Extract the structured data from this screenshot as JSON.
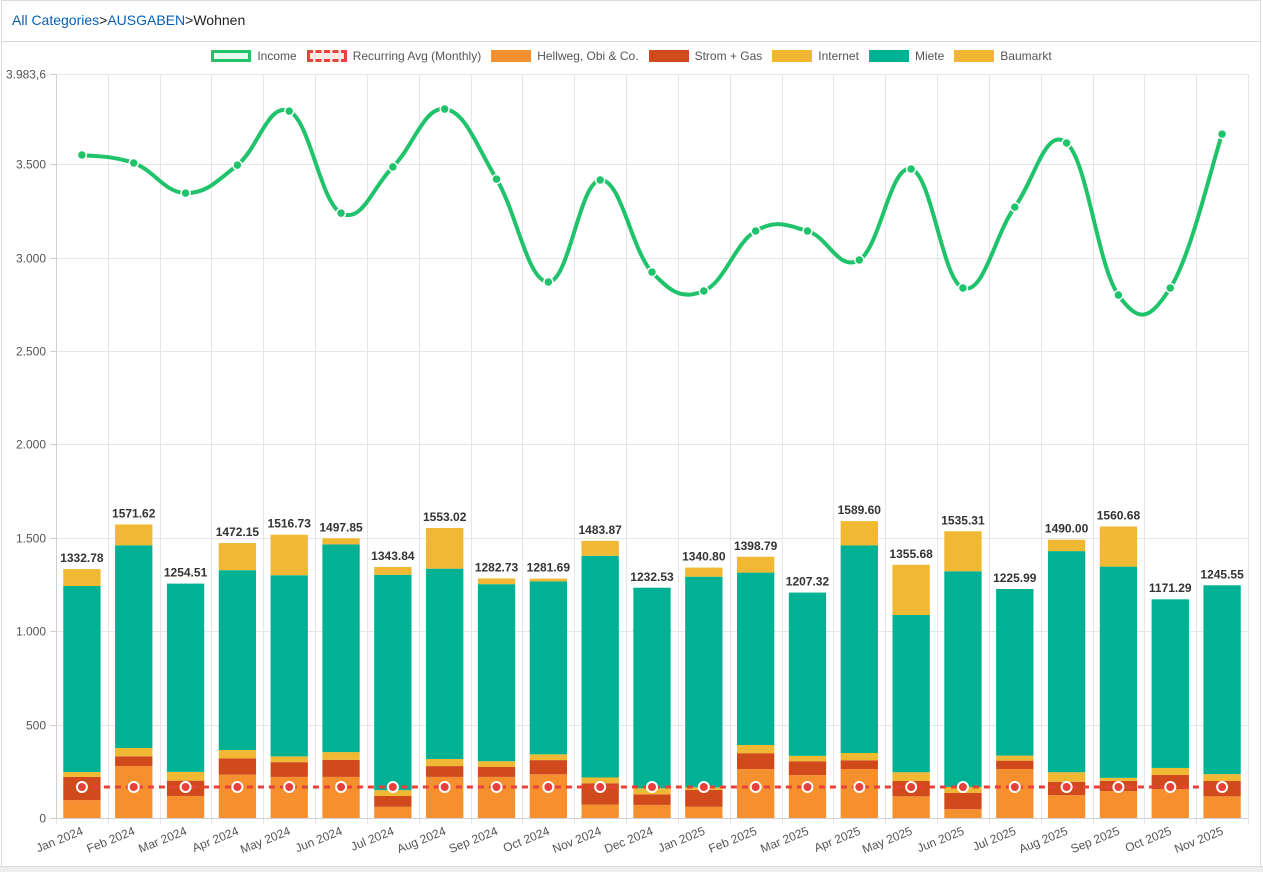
{
  "breadcrumb": {
    "items": [
      {
        "label": "All Categories",
        "link": true
      },
      {
        "label": ">",
        "link": false
      },
      {
        "label": "AUSGABEN",
        "link": true
      },
      {
        "label": ">",
        "link": false
      },
      {
        "label": "Wohnen",
        "link": false
      }
    ]
  },
  "colors": {
    "income": "#1fc36a",
    "recurring": "#e8403a",
    "hellweg": "#f6902f",
    "strom": "#d04a1c",
    "internet": "#f0b833",
    "miete": "#00b193",
    "baumarkt": "#f0b833"
  },
  "chart_data": {
    "type": "bar",
    "stacked": true,
    "title": "",
    "xlabel": "",
    "ylabel": "",
    "ylim": [
      0,
      3983.6
    ],
    "y_ticks": [
      {
        "value": 0,
        "label": "0"
      },
      {
        "value": 500,
        "label": "500"
      },
      {
        "value": 1000,
        "label": "1.000"
      },
      {
        "value": 1500,
        "label": "1.500"
      },
      {
        "value": 2000,
        "label": "2.000"
      },
      {
        "value": 2500,
        "label": "2.500"
      },
      {
        "value": 3000,
        "label": "3.000"
      },
      {
        "value": 3500,
        "label": "3.500"
      },
      {
        "value": 3983.6,
        "label": "3.983,6"
      }
    ],
    "grid": true,
    "legend_position": "top-center",
    "categories": [
      "Jan 2024",
      "Feb 2024",
      "Mar 2024",
      "Apr 2024",
      "May 2024",
      "Jun 2024",
      "Jul 2024",
      "Aug 2024",
      "Sep 2024",
      "Oct 2024",
      "Nov 2024",
      "Dec 2024",
      "Jan 2025",
      "Feb 2025",
      "Mar 2025",
      "Apr 2025",
      "May 2025",
      "Jun 2025",
      "Jul 2025",
      "Aug 2025",
      "Sep 2025",
      "Oct 2025",
      "Nov 2025"
    ],
    "totals_labels": [
      "1332.78",
      "1571.62",
      "1254.51",
      "1472.15",
      "1516.73",
      "1497.85",
      "1343.84",
      "1553.02",
      "1282.73",
      "1281.69",
      "1483.87",
      "1232.53",
      "1340.80",
      "1398.79",
      "1207.32",
      "1589.60",
      "1355.68",
      "1535.31",
      "1225.99",
      "1490.00",
      "1560.68",
      "1171.29",
      "1245.55"
    ],
    "series": [
      {
        "name": "Income",
        "type": "line",
        "style": "solid-curve",
        "values": [
          3550,
          3507,
          3346,
          3496,
          3785,
          3239,
          3486,
          3796,
          3421,
          2870,
          3416,
          2923,
          2822,
          3143,
          3143,
          2988,
          3475,
          2838,
          3271,
          3614,
          2800,
          2838,
          3662
        ]
      },
      {
        "name": "Recurring Avg (Monthly)",
        "type": "line",
        "style": "dashed",
        "values": [
          166,
          166,
          166,
          166,
          166,
          166,
          166,
          166,
          166,
          166,
          166,
          166,
          166,
          166,
          166,
          166,
          166,
          166,
          166,
          166,
          166,
          166,
          166
        ]
      },
      {
        "name": "Hellweg, Obi & Co.",
        "type": "bar",
        "values": [
          96,
          278,
          118,
          232,
          220,
          220,
          60,
          220,
          220,
          234,
          72,
          70,
          60,
          262,
          230,
          262,
          116,
          47,
          262,
          122,
          144,
          155,
          116
        ]
      },
      {
        "name": "Strom + Gas",
        "type": "bar",
        "values": [
          124,
          52,
          82,
          87,
          79,
          91,
          58,
          58,
          53,
          76,
          114,
          57,
          91,
          85,
          74,
          47,
          82,
          88,
          45,
          72,
          55,
          76,
          82
        ]
      },
      {
        "name": "Internet",
        "type": "bar",
        "values": [
          26,
          45,
          47,
          45,
          31,
          42,
          31,
          38,
          31,
          31,
          31,
          32,
          13,
          44,
          29,
          39,
          47,
          31,
          27,
          51,
          16,
          37,
          37
        ]
      },
      {
        "name": "Miete",
        "type": "bar",
        "values": [
          996,
          1085,
          1008,
          963,
          970,
          1112,
          1153,
          1019,
          948,
          926,
          1187,
          1074,
          1128,
          923,
          874,
          1111,
          842,
          1155,
          892,
          1184,
          1131,
          903,
          1011
        ]
      },
      {
        "name": "Baumarkt",
        "type": "bar",
        "values": [
          90.78,
          111.62,
          0,
          145.15,
          216.73,
          32.85,
          41.84,
          218.02,
          30.73,
          14.69,
          79.87,
          0,
          48.8,
          84.79,
          0,
          130.6,
          268.68,
          214.31,
          0,
          61.0,
          214.68,
          0,
          0
        ]
      }
    ]
  },
  "legend": [
    {
      "label": "Income",
      "kind": "line-solid",
      "color_key": "income"
    },
    {
      "label": "Recurring Avg (Monthly)",
      "kind": "line-dashed",
      "color_key": "recurring"
    },
    {
      "label": "Hellweg, Obi & Co.",
      "kind": "box",
      "color_key": "hellweg"
    },
    {
      "label": "Strom + Gas",
      "kind": "box",
      "color_key": "strom"
    },
    {
      "label": "Internet",
      "kind": "box",
      "color_key": "internet"
    },
    {
      "label": "Miete",
      "kind": "box",
      "color_key": "miete"
    },
    {
      "label": "Baumarkt",
      "kind": "box",
      "color_key": "baumarkt"
    }
  ]
}
